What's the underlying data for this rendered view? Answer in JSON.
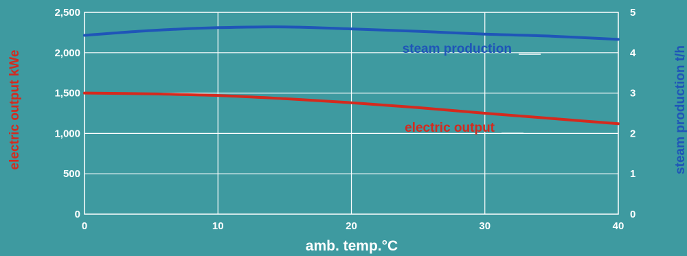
{
  "chart_data": {
    "type": "line",
    "title": "",
    "xlabel": "amb. temp.°C",
    "ylabel": "electric output kWe",
    "y2label": "steam production t/h",
    "xlim": [
      0,
      40
    ],
    "ylim": [
      0,
      2500
    ],
    "y2lim": [
      0,
      5
    ],
    "x_ticks": [
      "0",
      "10",
      "20",
      "30",
      "40"
    ],
    "y_ticks": [
      "0",
      "500",
      "1,000",
      "1,500",
      "2,000",
      "2,500"
    ],
    "y2_ticks": [
      "0",
      "1",
      "2",
      "3",
      "4",
      "5"
    ],
    "grid": true,
    "legend": "inline labels on lines",
    "colors": {
      "background": "#3e9aa0",
      "grid": "#ffffff",
      "electric": "#d42a1e",
      "steam": "#1f55b8",
      "tick_text": "#ffffff"
    },
    "series": [
      {
        "name": "electric output",
        "axis": "left",
        "x": [
          0,
          5,
          10,
          15,
          20,
          25,
          30,
          35,
          40
        ],
        "values": [
          1500,
          1490,
          1470,
          1430,
          1380,
          1320,
          1250,
          1185,
          1120
        ]
      },
      {
        "name": "steam production",
        "axis": "right",
        "x": [
          0,
          5,
          10,
          15,
          20,
          25,
          30,
          35,
          40
        ],
        "values": [
          4.43,
          4.55,
          4.62,
          4.64,
          4.59,
          4.53,
          4.46,
          4.41,
          4.33
        ]
      }
    ]
  }
}
